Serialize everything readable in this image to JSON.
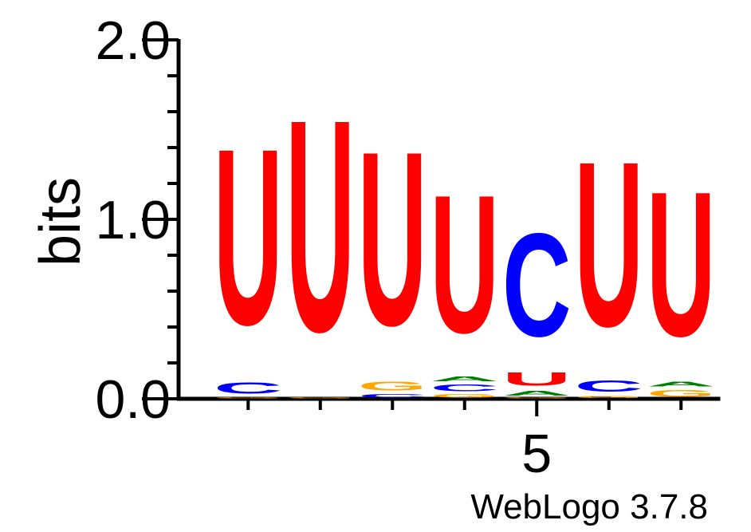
{
  "chart_data": {
    "type": "sequence-logo",
    "ylabel": "bits",
    "ylim": [
      0,
      2.0
    ],
    "ytick_labels": [
      "0.0",
      "1.0",
      "2.0"
    ],
    "ytick_values": [
      0,
      1,
      2
    ],
    "xtick_labels": [
      "5"
    ],
    "xtick_positions": [
      5
    ],
    "footer": "WebLogo 3.7.8",
    "colors": {
      "U": "#ff0000",
      "C": "#0000ff",
      "G": "#ffa500",
      "A": "#008000"
    },
    "positions": [
      {
        "pos": 1,
        "letters": [
          {
            "l": "G",
            "h": 0.01
          },
          {
            "l": "C",
            "h": 0.1
          },
          {
            "l": "U",
            "h": 1.57
          }
        ]
      },
      {
        "pos": 2,
        "letters": [
          {
            "l": "G",
            "h": 0.01
          },
          {
            "l": "U",
            "h": 1.89
          }
        ]
      },
      {
        "pos": 3,
        "letters": [
          {
            "l": "C",
            "h": 0.03
          },
          {
            "l": "G",
            "h": 0.08
          },
          {
            "l": "U",
            "h": 1.55
          }
        ]
      },
      {
        "pos": 4,
        "letters": [
          {
            "l": "G",
            "h": 0.03
          },
          {
            "l": "C",
            "h": 0.06
          },
          {
            "l": "A",
            "h": 0.04
          },
          {
            "l": "U",
            "h": 1.23
          }
        ]
      },
      {
        "pos": 5,
        "letters": [
          {
            "l": "G",
            "h": 0.01
          },
          {
            "l": "A",
            "h": 0.04
          },
          {
            "l": "U",
            "h": 0.12
          },
          {
            "l": "C",
            "h": 0.92
          }
        ]
      },
      {
        "pos": 6,
        "letters": [
          {
            "l": "G",
            "h": 0.02
          },
          {
            "l": "C",
            "h": 0.1
          },
          {
            "l": "U",
            "h": 1.47
          }
        ]
      },
      {
        "pos": 7,
        "letters": [
          {
            "l": "G",
            "h": 0.06
          },
          {
            "l": "A",
            "h": 0.04
          },
          {
            "l": "U",
            "h": 1.29
          }
        ]
      }
    ]
  }
}
